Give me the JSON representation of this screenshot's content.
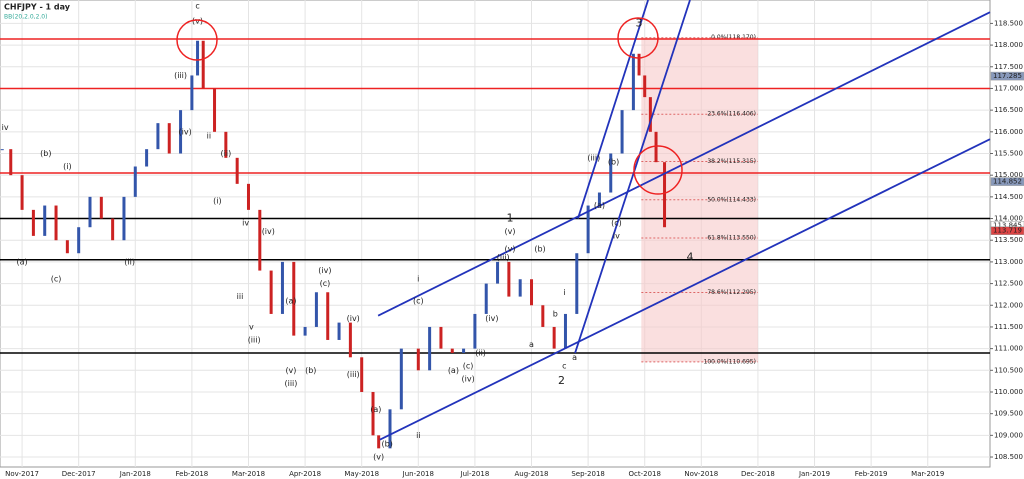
{
  "chart_data": {
    "type": "candlestick",
    "title": "CHFJPY - 1 day",
    "subtitle": "BB(20,2.0,2.0)",
    "x": [
      -0.35,
      -0.2,
      0,
      0.2,
      0.4,
      0.6,
      0.8,
      1.0,
      1.2,
      1.4,
      1.6,
      1.8,
      2.0,
      2.2,
      2.4,
      2.6,
      2.8,
      3.0,
      3.1,
      3.2,
      3.4,
      3.6,
      3.8,
      4.0,
      4.2,
      4.4,
      4.6,
      4.8,
      5.0,
      5.2,
      5.4,
      5.6,
      5.8,
      6.0,
      6.2,
      6.3,
      6.5,
      6.7,
      7.0,
      7.2,
      7.4,
      7.6,
      7.8,
      8.0,
      8.2,
      8.4,
      8.6,
      8.8,
      9.0,
      9.2,
      9.4,
      9.6,
      9.8,
      10.0,
      10.2,
      10.4,
      10.6,
      10.8,
      10.9,
      11.0,
      11.1,
      11.2,
      11.35
    ],
    "values": [
      115.6,
      115.0,
      114.2,
      113.6,
      114.3,
      113.5,
      113.2,
      113.8,
      114.5,
      114.0,
      113.5,
      114.5,
      115.2,
      115.6,
      116.2,
      115.5,
      116.5,
      117.3,
      118.1,
      117.0,
      116.0,
      115.4,
      114.8,
      114.2,
      112.8,
      111.8,
      113.0,
      111.3,
      111.5,
      112.3,
      111.2,
      111.6,
      110.8,
      110.0,
      109.0,
      108.7,
      109.6,
      111.0,
      110.5,
      111.5,
      111.0,
      110.9,
      111.0,
      111.8,
      112.5,
      113.0,
      112.2,
      112.6,
      112.0,
      111.5,
      111.0,
      111.8,
      113.2,
      114.3,
      114.6,
      115.5,
      116.5,
      117.8,
      117.3,
      116.8,
      116.0,
      115.3,
      113.8
    ],
    "up_color": "#3355aa",
    "down_color": "#cc2222",
    "xlim": [
      -0.39,
      17.1
    ],
    "ylim": [
      108.27,
      119.04
    ],
    "xticks": [
      {
        "value": 0,
        "label": "Nov-2017"
      },
      {
        "value": 1,
        "label": "Dec-2017"
      },
      {
        "value": 2,
        "label": "Jan-2018"
      },
      {
        "value": 3,
        "label": "Feb-2018"
      },
      {
        "value": 4,
        "label": "Mar-2018"
      },
      {
        "value": 5,
        "label": "Apr-2018"
      },
      {
        "value": 6,
        "label": "May-2018"
      },
      {
        "value": 7,
        "label": "Jun-2018"
      },
      {
        "value": 8,
        "label": "Jul-2018"
      },
      {
        "value": 9,
        "label": "Aug-2018"
      },
      {
        "value": 10,
        "label": "Sep-2018"
      },
      {
        "value": 11,
        "label": "Oct-2018"
      },
      {
        "value": 12,
        "label": "Nov-2018"
      },
      {
        "value": 13,
        "label": "Dec-2018"
      },
      {
        "value": 14,
        "label": "Jan-2019"
      },
      {
        "value": 15,
        "label": "Feb-2019"
      },
      {
        "value": 16,
        "label": "Mar-2019"
      }
    ],
    "yticks": [
      {
        "value": 108.5,
        "label": "108.500"
      },
      {
        "value": 109,
        "label": "109.000"
      },
      {
        "value": 109.5,
        "label": "109.500"
      },
      {
        "value": 110,
        "label": "110.000"
      },
      {
        "value": 110.5,
        "label": "110.500"
      },
      {
        "value": 111,
        "label": "111.000"
      },
      {
        "value": 111.5,
        "label": "111.500"
      },
      {
        "value": 112,
        "label": "112.000"
      },
      {
        "value": 112.5,
        "label": "112.500"
      },
      {
        "value": 113,
        "label": "113.000"
      },
      {
        "value": 113.5,
        "label": "113.500"
      },
      {
        "value": 114,
        "label": "114.000"
      },
      {
        "value": 114.5,
        "label": "114.500"
      },
      {
        "value": 115,
        "label": "115.000"
      },
      {
        "value": 115.5,
        "label": "115.500"
      },
      {
        "value": 116,
        "label": "116.000"
      },
      {
        "value": 116.5,
        "label": "116.500"
      },
      {
        "value": 117,
        "label": "117.000"
      },
      {
        "value": 117.5,
        "label": "117.500"
      },
      {
        "value": 118,
        "label": "118.000"
      },
      {
        "value": 118.5,
        "label": "118.500"
      }
    ],
    "grid": true,
    "red_levels": [
      118.14,
      117.0,
      115.05
    ],
    "black_levels": [
      114.0,
      113.05,
      110.9
    ],
    "price_tags": [
      {
        "value": 117.285,
        "label": "117.285",
        "color": "#8899bb"
      },
      {
        "value": 114.852,
        "label": "114.852",
        "color": "#8899bb"
      },
      {
        "value": 113.845,
        "label": "113.845",
        "color": "#ffffff"
      },
      {
        "value": 113.719,
        "label": "113.719",
        "color": "#dd4444"
      }
    ],
    "fib": {
      "x_start": 10.94,
      "x_end": 13.0,
      "levels": [
        {
          "value": 118.17,
          "label": "0.0%(118.170)"
        },
        {
          "value": 116.406,
          "label": "23.6%(116.406)"
        },
        {
          "value": 115.315,
          "label": "38.2%(115.315)"
        },
        {
          "value": 114.433,
          "label": "50.0%(114.433)"
        },
        {
          "value": 113.55,
          "label": "61.8%(113.550)"
        },
        {
          "value": 112.295,
          "label": "78.6%(112.295)"
        },
        {
          "value": 110.695,
          "label": "100.0%(110.695)"
        }
      ]
    },
    "trendlines": [
      [
        9.82,
        114.0,
        11.06,
        119.04
      ],
      [
        9.77,
        110.9,
        11.8,
        119.04
      ],
      [
        6.29,
        111.76,
        17.1,
        118.76
      ],
      [
        6.32,
        108.9,
        17.1,
        115.83
      ]
    ],
    "annotations": [
      {
        "text": "c",
        "x": 3.1,
        "y": 118.9
      },
      {
        "text": "(v)",
        "x": 3.1,
        "y": 118.55
      },
      {
        "text": "(iii)",
        "x": 2.8,
        "y": 117.3
      },
      {
        "text": "(iv)",
        "x": 2.88,
        "y": 116.0
      },
      {
        "text": "iv",
        "x": -0.3,
        "y": 116.1
      },
      {
        "text": "(b)",
        "x": 0.42,
        "y": 115.5
      },
      {
        "text": "(i)",
        "x": 0.8,
        "y": 115.2
      },
      {
        "text": "(a)",
        "x": 0.0,
        "y": 113.0
      },
      {
        "text": "(ii)",
        "x": 1.9,
        "y": 113.0
      },
      {
        "text": "(c)",
        "x": 0.6,
        "y": 112.6
      },
      {
        "text": "ii",
        "x": 3.3,
        "y": 115.9
      },
      {
        "text": "(ii)",
        "x": 3.6,
        "y": 115.5
      },
      {
        "text": "(i)",
        "x": 3.45,
        "y": 114.4
      },
      {
        "text": "(iv)",
        "x": 4.35,
        "y": 113.7
      },
      {
        "text": "iv",
        "x": 3.95,
        "y": 113.9
      },
      {
        "text": "iii",
        "x": 3.85,
        "y": 112.2
      },
      {
        "text": "v",
        "x": 4.05,
        "y": 111.5
      },
      {
        "text": "(iii)",
        "x": 4.1,
        "y": 111.2
      },
      {
        "text": "(iv)",
        "x": 5.35,
        "y": 112.8
      },
      {
        "text": "(c)",
        "x": 5.35,
        "y": 112.5
      },
      {
        "text": "(a)",
        "x": 4.75,
        "y": 112.1
      },
      {
        "text": "(b)",
        "x": 5.1,
        "y": 110.5
      },
      {
        "text": "(v)",
        "x": 4.75,
        "y": 110.5
      },
      {
        "text": "(iii)",
        "x": 4.75,
        "y": 110.2
      },
      {
        "text": "(iii)",
        "x": 5.85,
        "y": 110.4
      },
      {
        "text": "(iv)",
        "x": 5.85,
        "y": 111.7
      },
      {
        "text": "(a)",
        "x": 6.25,
        "y": 109.6
      },
      {
        "text": "(b)",
        "x": 6.45,
        "y": 108.8
      },
      {
        "text": "(v)",
        "x": 6.3,
        "y": 108.5
      },
      {
        "text": "ii",
        "x": 7.0,
        "y": 109.0
      },
      {
        "text": "i",
        "x": 7.0,
        "y": 112.6
      },
      {
        "text": "(c)",
        "x": 7.0,
        "y": 112.1
      },
      {
        "text": "(a)",
        "x": 7.62,
        "y": 110.5
      },
      {
        "text": "(c)",
        "x": 7.88,
        "y": 110.6
      },
      {
        "text": "(iv)",
        "x": 7.88,
        "y": 110.3
      },
      {
        "text": "(ii)",
        "x": 8.1,
        "y": 110.9
      },
      {
        "text": "(iv)",
        "x": 8.3,
        "y": 111.7
      },
      {
        "text": "(iii)",
        "x": 8.5,
        "y": 113.1
      },
      {
        "text": "1",
        "x": 8.62,
        "y": 114.0
      },
      {
        "text": "(v)",
        "x": 8.62,
        "y": 113.7
      },
      {
        "text": "(v)",
        "x": 8.62,
        "y": 113.3
      },
      {
        "text": "(b)",
        "x": 9.15,
        "y": 113.3
      },
      {
        "text": "a",
        "x": 9.0,
        "y": 111.1
      },
      {
        "text": "b",
        "x": 9.42,
        "y": 111.8
      },
      {
        "text": "i",
        "x": 9.58,
        "y": 112.3
      },
      {
        "text": "c",
        "x": 9.58,
        "y": 110.6
      },
      {
        "text": "a",
        "x": 9.76,
        "y": 110.8
      },
      {
        "text": "2",
        "x": 9.53,
        "y": 110.25
      },
      {
        "text": "(iii)",
        "x": 10.1,
        "y": 115.4
      },
      {
        "text": "(a)",
        "x": 10.2,
        "y": 114.3
      },
      {
        "text": "(b)",
        "x": 10.45,
        "y": 115.3
      },
      {
        "text": "(c)",
        "x": 10.5,
        "y": 113.9
      },
      {
        "text": "iv",
        "x": 10.5,
        "y": 113.6
      },
      {
        "text": "3",
        "x": 10.9,
        "y": 118.5
      },
      {
        "text": "4",
        "x": 11.8,
        "y": 113.1
      }
    ]
  }
}
